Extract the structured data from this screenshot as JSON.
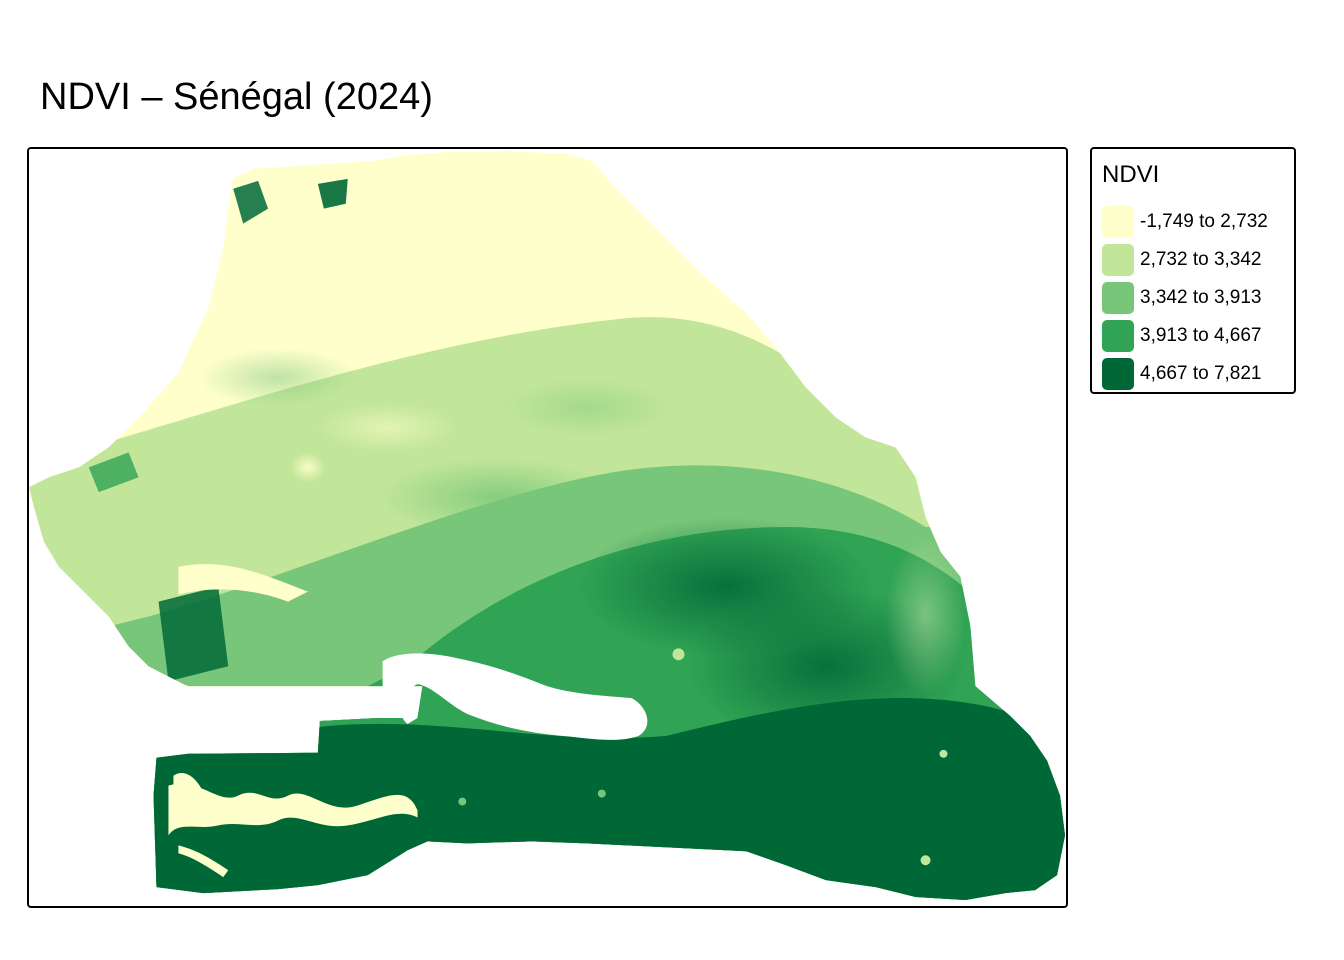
{
  "map": {
    "title": "NDVI – Sénégal (2024)",
    "region": "Sénégal",
    "year": "2024",
    "variable": "NDVI"
  },
  "legend": {
    "title": "NDVI",
    "items": [
      {
        "label": "-1,749 to 2,732",
        "color": "#ffffcc"
      },
      {
        "label": "2,732 to 3,342",
        "color": "#c2e699"
      },
      {
        "label": "3,342 to 3,913",
        "color": "#78c679"
      },
      {
        "label": "3,913 to 4,667",
        "color": "#31a354"
      },
      {
        "label": "4,667 to 7,821",
        "color": "#006837"
      }
    ]
  }
}
